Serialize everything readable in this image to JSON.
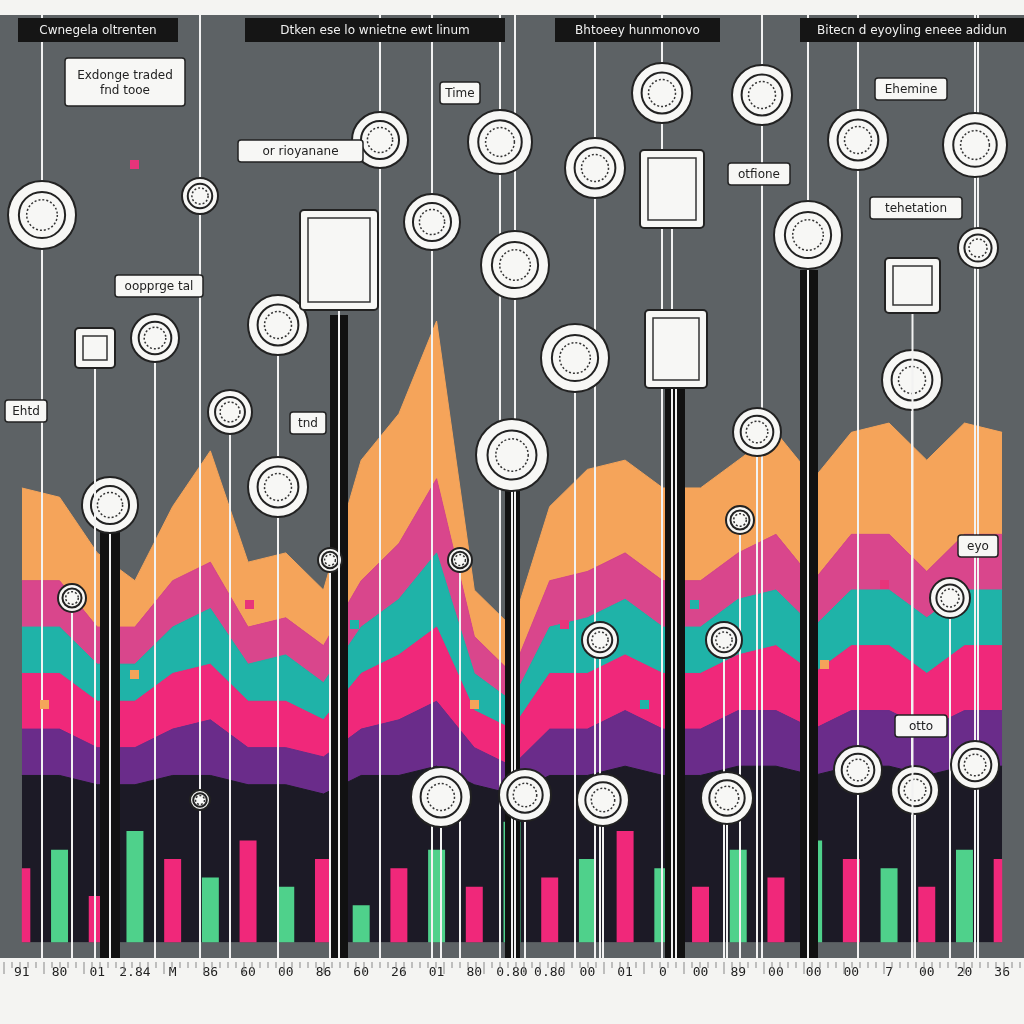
{
  "chart_data": {
    "type": "line",
    "stacked": true,
    "categories": [
      "91",
      "80",
      "01",
      "2.84",
      "M",
      "86",
      "60",
      "00",
      "86",
      "60",
      "26",
      "01",
      "80",
      "0.80",
      "0.80",
      "00",
      "01",
      "0",
      "00",
      "89",
      "00",
      "00",
      "00",
      "7",
      "00",
      "20",
      "36"
    ],
    "series": [
      {
        "color": "#1c1a26",
        "values": [
          18,
          18,
          17,
          17,
          18,
          18,
          17,
          17,
          16,
          18,
          18,
          19,
          17,
          16,
          18,
          18,
          19,
          18,
          18,
          19,
          19,
          18,
          19,
          19,
          18,
          19,
          19
        ]
      },
      {
        "color": "#6a2c8a",
        "values": [
          5,
          5,
          4,
          4,
          5,
          6,
          4,
          4,
          4,
          5,
          6,
          7,
          4,
          3,
          5,
          5,
          6,
          5,
          5,
          6,
          6,
          5,
          6,
          6,
          5,
          6,
          6
        ]
      },
      {
        "color": "#f0287a",
        "values": [
          6,
          6,
          5,
          5,
          6,
          6,
          5,
          5,
          4,
          6,
          7,
          8,
          4,
          4,
          6,
          6,
          6,
          6,
          6,
          6,
          7,
          6,
          7,
          7,
          6,
          7,
          7
        ]
      },
      {
        "color": "#1fb3a8",
        "values": [
          5,
          5,
          4,
          4,
          5,
          6,
          4,
          5,
          4,
          5,
          6,
          8,
          4,
          3,
          5,
          6,
          6,
          5,
          5,
          6,
          6,
          5,
          6,
          6,
          6,
          6,
          6
        ]
      },
      {
        "color": "#d9468c",
        "values": [
          5,
          5,
          4,
          4,
          5,
          5,
          4,
          4,
          4,
          5,
          6,
          8,
          4,
          3,
          5,
          5,
          5,
          5,
          5,
          5,
          6,
          5,
          6,
          6,
          5,
          6,
          6
        ]
      },
      {
        "color": "#f5a45a",
        "values": [
          10,
          9,
          8,
          5,
          8,
          12,
          7,
          7,
          6,
          13,
          14,
          17,
          5,
          5,
          8,
          11,
          10,
          10,
          10,
          10,
          11,
          11,
          11,
          12,
          12,
          12,
          11
        ]
      },
      {
        "type": "bar",
        "colors": [
          "#f0287a",
          "#4fd18b",
          "#f0287a",
          "#4fd18b",
          "#f0287a",
          "#4fd18b",
          "#f0287a",
          "#4fd18b",
          "#f0287a",
          "#4fd18b",
          "#f0287a",
          "#4fd18b",
          "#f0287a",
          "#4fd18b",
          "#f0287a",
          "#4fd18b",
          "#f0287a",
          "#4fd18b",
          "#f0287a",
          "#4fd18b",
          "#f0287a",
          "#4fd18b",
          "#f0287a",
          "#4fd18b",
          "#f0287a",
          "#4fd18b",
          "#f0287a"
        ],
        "values": [
          8,
          10,
          5,
          12,
          9,
          7,
          11,
          6,
          9,
          4,
          8,
          10,
          6,
          13,
          7,
          9,
          12,
          8,
          6,
          10,
          7,
          11,
          9,
          8,
          6,
          10,
          9
        ]
      }
    ],
    "ylim": [
      0,
      100
    ],
    "yticks": [
      0,
      100
    ],
    "grid": false,
    "tick_labels": "x",
    "annotations": [
      "Cwnegela oltrenten",
      "Dtken ese lo wnietne ewt linum",
      "Bhtoeey hunmonovo",
      "Bitecn d eyoyling eneee adidun",
      "Exdonge traded fnd tooe",
      "Time",
      "or rioyanane",
      "oopprge tal",
      "Ehtd",
      "tnd",
      "otfione",
      "Ehemine",
      "tehetation",
      "eyo",
      "otto"
    ]
  }
}
